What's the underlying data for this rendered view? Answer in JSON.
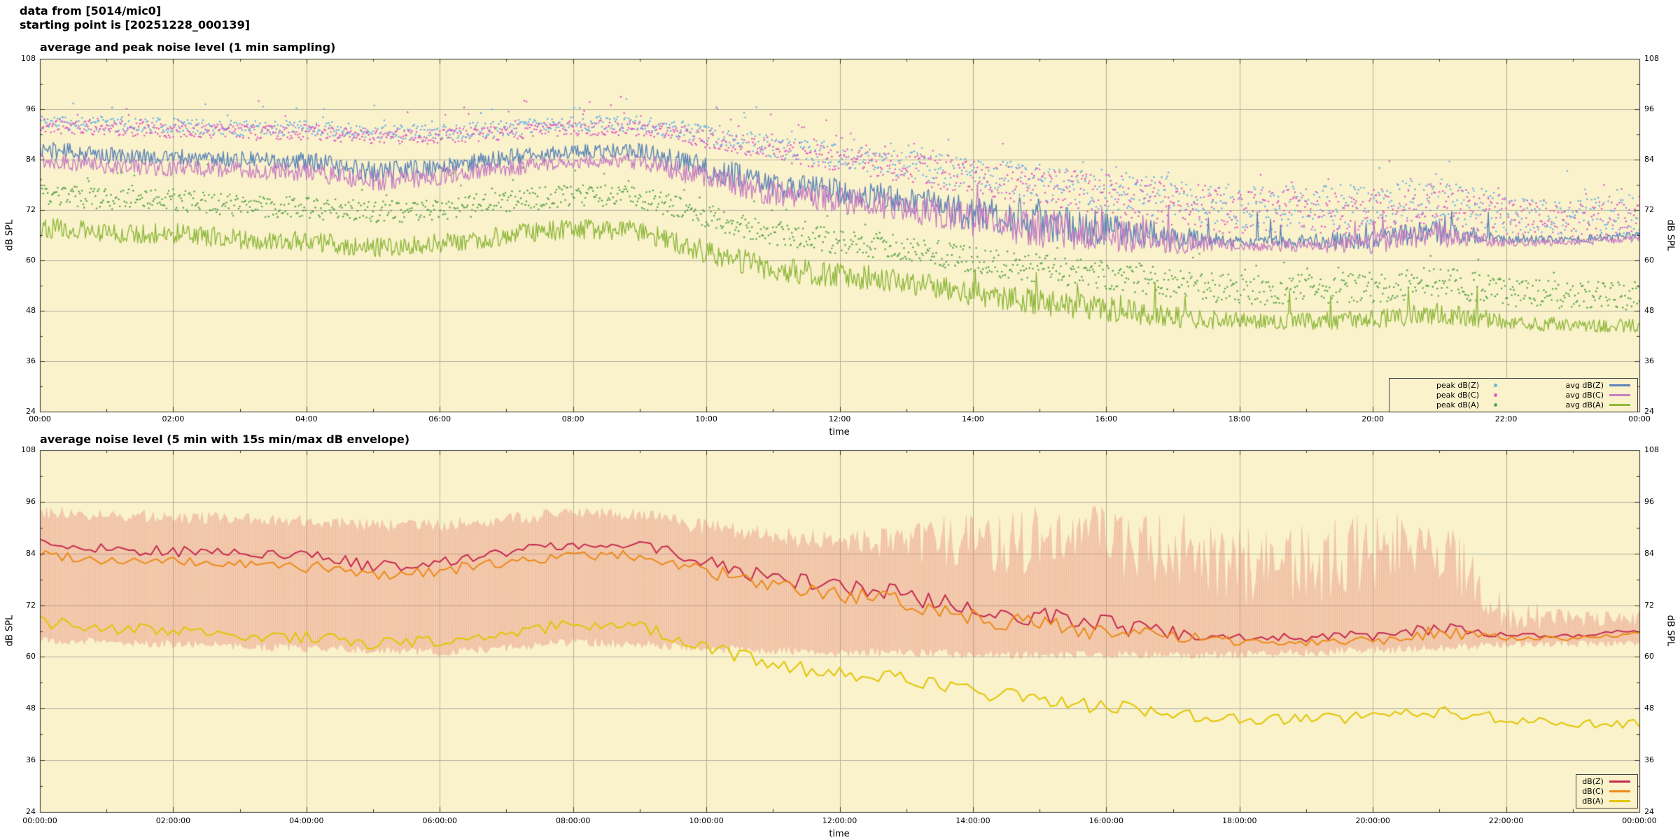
{
  "header": {
    "line1": "data from [5014/mic0]",
    "line2": "starting point is [20251228_000139]"
  },
  "style": {
    "plot_bg": "#faf2cb",
    "grid_color": "#b0b09e",
    "border_color": "#333333",
    "envelope_color_fill": "rgba(233,128,118,0.30)",
    "envelope_color_stroke": "rgba(228,110,100,0.18)"
  },
  "chart_data": [
    {
      "type": "scatter",
      "title": "average and peak noise level (1 min sampling)",
      "xlabel": "time",
      "ylabel": "dB SPL",
      "xlim_hours": [
        0,
        24
      ],
      "ylim": [
        24,
        108
      ],
      "y_ticks": [
        24,
        36,
        48,
        60,
        72,
        84,
        96,
        108
      ],
      "x_tick_labels": [
        "00:00",
        "02:00",
        "04:00",
        "06:00",
        "08:00",
        "10:00",
        "12:00",
        "14:00",
        "16:00",
        "18:00",
        "20:00",
        "22:00",
        "00:00"
      ],
      "x_hours": [
        0,
        1,
        2,
        3,
        4,
        5,
        6,
        7,
        8,
        9,
        10,
        11,
        12,
        13,
        14,
        15,
        16,
        17,
        18,
        19,
        20,
        21,
        22,
        23,
        24
      ],
      "samples_per_hour": 60,
      "series": [
        {
          "name": "peak dB(Z)",
          "style": "points",
          "color": "#6fb2e4",
          "seed": 11,
          "values": [
            93,
            92.5,
            92,
            91.5,
            91.5,
            90.5,
            90.5,
            91.5,
            92.5,
            92.5,
            90,
            87,
            85,
            83,
            80.5,
            78.5,
            76.5,
            74.5,
            72.5,
            72.5,
            73,
            74.5,
            71,
            70.5,
            70.5
          ],
          "jitter": [
            1.8,
            1.8,
            1.8,
            1.8,
            1.8,
            1.8,
            1.8,
            1.8,
            1.8,
            1.8,
            2.2,
            2.6,
            3,
            3.4,
            4,
            4.6,
            5,
            5.4,
            5.6,
            5.6,
            5.4,
            5,
            4.6,
            4.4,
            4.4
          ]
        },
        {
          "name": "peak dB(C)",
          "style": "points",
          "color": "#e25fc8",
          "seed": 22,
          "values": [
            92,
            91.5,
            91,
            90.5,
            90.5,
            89.5,
            89.5,
            90.5,
            91.5,
            91.5,
            89,
            86,
            84,
            82,
            79.5,
            77.5,
            75.5,
            73.5,
            71.5,
            71.5,
            72,
            73.5,
            70,
            69.5,
            69.5
          ],
          "jitter": [
            1.8,
            1.8,
            1.8,
            1.8,
            1.8,
            1.8,
            1.8,
            1.8,
            1.8,
            1.8,
            2.2,
            2.6,
            3,
            3.4,
            4,
            4.6,
            5,
            5.4,
            5.6,
            5.6,
            5.4,
            5,
            4.6,
            4.4,
            4.4
          ]
        },
        {
          "name": "peak dB(A)",
          "style": "points",
          "color": "#5da74c",
          "seed": 33,
          "values": [
            75.5,
            74.5,
            74.5,
            73,
            72.5,
            71.5,
            72,
            74,
            75.5,
            75,
            70.5,
            66.5,
            64.5,
            63,
            60,
            58,
            56.5,
            54.5,
            53,
            53,
            53.5,
            55,
            52.5,
            51.5,
            51.5
          ],
          "jitter": [
            2.6,
            2.6,
            2.6,
            2.6,
            2.6,
            2.6,
            2.6,
            2.6,
            2.6,
            2.6,
            2.8,
            3,
            3,
            3,
            3.2,
            3.4,
            3.4,
            3.4,
            3.6,
            3.6,
            3.6,
            3.6,
            3.4,
            3.4,
            3.4
          ]
        },
        {
          "name": "avg dB(Z)",
          "style": "line",
          "color": "#5b84b8",
          "seed": 44,
          "values": [
            86.5,
            85,
            84.5,
            84,
            83.5,
            81,
            82,
            84.5,
            86,
            86,
            82,
            78,
            76.5,
            74.5,
            71,
            69,
            67.5,
            65.5,
            64.5,
            64.5,
            65,
            67,
            65,
            65,
            66
          ],
          "jitter": [
            2,
            2,
            2,
            2,
            2.3,
            2.5,
            2.2,
            2,
            1.6,
            2,
            3,
            3.2,
            3.2,
            3.4,
            4.2,
            4.4,
            4.2,
            3,
            1.2,
            1.6,
            2.6,
            3,
            1,
            0.9,
            0.9
          ]
        },
        {
          "name": "avg dB(C)",
          "style": "line",
          "color": "#c87fc4",
          "seed": 55,
          "values": [
            84,
            82.5,
            82,
            81.5,
            81,
            79,
            80,
            82,
            83.5,
            83.5,
            80,
            76,
            74.5,
            72.5,
            69.5,
            67.5,
            66,
            64.5,
            63.5,
            63.5,
            64,
            66,
            64.3,
            64.3,
            65.3
          ],
          "jitter": [
            2,
            2,
            2,
            2,
            2.3,
            2.5,
            2.2,
            2,
            1.6,
            2,
            3,
            3.2,
            3.2,
            3.4,
            4.2,
            4.4,
            4.2,
            3,
            1.2,
            1.6,
            2.6,
            3,
            1,
            0.9,
            0.9
          ]
        },
        {
          "name": "avg dB(A)",
          "style": "line",
          "color": "#8fb83c",
          "seed": 66,
          "values": [
            68,
            66.5,
            66.5,
            65,
            64.5,
            63,
            64,
            66,
            67.5,
            67,
            62,
            58,
            56.5,
            55,
            52,
            50,
            48.5,
            46.5,
            45.5,
            45.5,
            46,
            47.5,
            45.5,
            44.5,
            44.5
          ],
          "jitter": [
            2.4,
            2.4,
            2.4,
            2.4,
            2.4,
            2.4,
            2.4,
            2.4,
            2.4,
            2.4,
            2.8,
            3,
            3,
            3,
            3,
            3,
            3,
            2.6,
            2,
            2,
            2.2,
            2.6,
            2,
            1.6,
            1.6
          ]
        }
      ]
    },
    {
      "type": "line",
      "title": "average noise level (5 min with 15s min/max dB envelope)",
      "xlabel": "time",
      "ylabel": "dB SPL",
      "xlim_hours": [
        0,
        24
      ],
      "ylim": [
        24,
        108
      ],
      "y_ticks": [
        24,
        36,
        48,
        60,
        72,
        84,
        96,
        108
      ],
      "x_tick_labels": [
        "00:00:00",
        "02:00:00",
        "04:00:00",
        "06:00:00",
        "08:00:00",
        "10:00:00",
        "12:00:00",
        "14:00:00",
        "16:00:00",
        "18:00:00",
        "20:00:00",
        "22:00:00",
        "00:00:00"
      ],
      "x_hours": [
        0,
        1,
        2,
        3,
        4,
        5,
        6,
        7,
        8,
        9,
        10,
        11,
        12,
        13,
        14,
        15,
        16,
        17,
        18,
        19,
        20,
        21,
        22,
        23,
        24
      ],
      "samples_per_hour": 12,
      "envelope": {
        "seed": 77,
        "hi": [
          93.5,
          93,
          92.5,
          92,
          91.5,
          90.5,
          90.5,
          92,
          93.5,
          93,
          90,
          88,
          87,
          86.5,
          87,
          87,
          87,
          85,
          80,
          82,
          85,
          86,
          70,
          69,
          69
        ],
        "hi_jitter": [
          1.5,
          1.5,
          1.5,
          1.5,
          1.5,
          1.5,
          1.5,
          1.5,
          1.5,
          1.5,
          2,
          2,
          2.5,
          4,
          7,
          8,
          8,
          9,
          10,
          10,
          9,
          8,
          4,
          2,
          2
        ],
        "lo": [
          64,
          63.5,
          63,
          62.5,
          62,
          61.5,
          61,
          62,
          63.5,
          63,
          62,
          61.5,
          61,
          61,
          60.5,
          60.5,
          60.5,
          60.5,
          60.5,
          61,
          61.5,
          62,
          63,
          63,
          63
        ],
        "lo_jitter": [
          1,
          1,
          1,
          1,
          1,
          1,
          1,
          1,
          1,
          1,
          1,
          1,
          1,
          1,
          1,
          1,
          1,
          1,
          1,
          1,
          1,
          1,
          0.8,
          0.8,
          0.8
        ]
      },
      "series": [
        {
          "name": "dB(Z)",
          "style": "line",
          "color": "#c62a50",
          "seed": 88,
          "values": [
            86.5,
            85,
            84.5,
            84,
            83.5,
            81,
            82,
            84.5,
            86,
            86,
            82,
            78,
            76.5,
            74.5,
            71,
            69,
            67.5,
            65.5,
            64.5,
            64.5,
            65,
            67,
            65,
            65,
            66
          ],
          "jitter": [
            1.2,
            1.2,
            1.2,
            1.2,
            1.4,
            1.5,
            1.3,
            1.2,
            1,
            1.2,
            1.8,
            2,
            2,
            2.2,
            2.5,
            2.5,
            2.4,
            1.8,
            0.8,
            1,
            1.5,
            1.8,
            0.6,
            0.5,
            0.5
          ]
        },
        {
          "name": "dB(C)",
          "style": "line",
          "color": "#ec8a1a",
          "seed": 99,
          "values": [
            84,
            82.5,
            82,
            81.5,
            81,
            79,
            80,
            82,
            83.5,
            83.5,
            80,
            76,
            74.5,
            72.5,
            69.5,
            67.5,
            66,
            64.5,
            63.5,
            63.5,
            64,
            66,
            64.3,
            64.3,
            65.3
          ],
          "jitter": [
            1.2,
            1.2,
            1.2,
            1.2,
            1.4,
            1.5,
            1.3,
            1.2,
            1,
            1.2,
            1.8,
            2,
            2,
            2.2,
            2.5,
            2.5,
            2.4,
            1.8,
            0.8,
            1,
            1.5,
            1.8,
            0.6,
            0.5,
            0.5
          ]
        },
        {
          "name": "dB(A)",
          "style": "line",
          "color": "#e2c500",
          "seed": 111,
          "values": [
            68,
            66.5,
            66.5,
            65,
            64.5,
            63,
            64,
            66,
            67.5,
            67,
            62,
            58,
            56.5,
            55,
            52,
            50,
            48.5,
            46.5,
            45.5,
            45.5,
            46,
            47.5,
            45.5,
            44.5,
            44.5
          ],
          "jitter": [
            1.5,
            1.5,
            1.5,
            1.5,
            1.5,
            1.5,
            1.5,
            1.5,
            1.5,
            1.5,
            1.8,
            1.8,
            1.8,
            1.8,
            1.8,
            1.8,
            1.8,
            1.5,
            1.2,
            1.2,
            1.4,
            1.5,
            1.2,
            1,
            1
          ]
        }
      ]
    }
  ]
}
